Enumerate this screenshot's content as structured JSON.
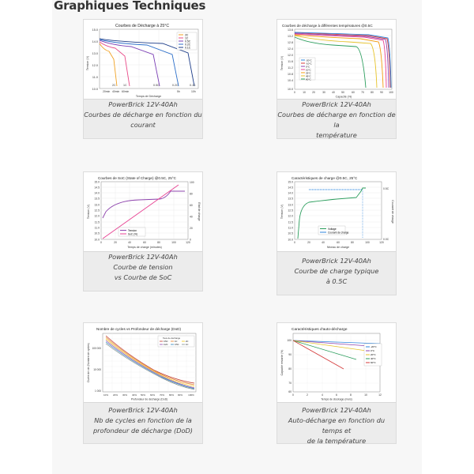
{
  "heading": "Graphiques Techniques",
  "cards": [
    {
      "caption": [
        "PowerBrick 12V-40Ah",
        "Courbes de décharge en fonction du",
        "courant"
      ],
      "chart": {
        "title": "Courbes de Décharge à 25°C",
        "ylabel": "Tension (V)",
        "xlabel": "Temps de Décharge",
        "yticks": [
          "15.0",
          "14.0",
          "13.0",
          "12.0",
          "11.0",
          "10.0"
        ],
        "xticks": [
          "2C",
          "1C",
          "0.5C",
          "0.2C",
          "0.1C"
        ],
        "xticks2": [
          "20min",
          "40min",
          "60min",
          "5h",
          "10h"
        ],
        "series": [
          "2C",
          "1C",
          "0.5C",
          "0.2C",
          "0.1C"
        ]
      }
    },
    {
      "caption": [
        "PowerBrick 12V-40Ah",
        "Courbes de décharge en fonction de la",
        "température"
      ],
      "chart": {
        "title": "Courbes de décharge à différentes températures @0.5C",
        "ylabel": "Tension (V)",
        "xlabel": "Capacité (%)",
        "yticks": [
          "13.6",
          "13.2",
          "12.8",
          "12.4",
          "12.0",
          "11.6",
          "11.2",
          "10.8",
          "10.4",
          "10.0"
        ],
        "xticks": [
          "0",
          "10",
          "20",
          "30",
          "40",
          "50",
          "60",
          "70",
          "80",
          "90",
          "100"
        ],
        "series": [
          "-20°C",
          "-10°C",
          "0°C",
          "10°C",
          "25°C",
          "45°C",
          "60°C"
        ]
      }
    },
    {
      "caption": [
        "PowerBrick 12V-40Ah",
        "Courbe de tension",
        "vs Courbe de SoC"
      ],
      "chart": {
        "title": "Courbes de SoC (State of Charge) @0.5C, 25°C",
        "ylabel": "Tension (V)",
        "y2label": "Etat de charge",
        "xlabel": "Temps de charge (minutes)",
        "yticks": [
          "15.0",
          "14.5",
          "14.0",
          "13.5",
          "13.0",
          "12.5",
          "12.0",
          "11.5",
          "11.0",
          "10.5",
          "10.0"
        ],
        "y2ticks": [
          "100",
          "80",
          "60",
          "40",
          "20",
          "0"
        ],
        "xticks": [
          "0",
          "20",
          "40",
          "60",
          "80",
          "100",
          "120"
        ],
        "series": [
          "Tension",
          "SoC (%)"
        ]
      }
    },
    {
      "caption": [
        "PowerBrick 12V-40Ah",
        "Courbe de charge typique",
        "à 0.5C"
      ],
      "chart": {
        "title": "Caractéristiques de charge @0.5C, 25°C",
        "ylabel": "Tension (V)",
        "y2label": "Courant de charge",
        "xlabel": "Niveau de charge",
        "yticks": [
          "15.0",
          "14.5",
          "14.0",
          "13.5",
          "13.0",
          "12.5",
          "12.0",
          "11.5",
          "11.0",
          "10.5",
          "10.0"
        ],
        "y2ticks": [
          "0.5C",
          "0.0C"
        ],
        "xticks": [
          "0",
          "20",
          "40",
          "60",
          "80",
          "100",
          "120"
        ],
        "series": [
          "Voltage",
          "Courant de charge"
        ]
      }
    },
    {
      "caption": [
        "PowerBrick 12V-40Ah",
        "Nb de cycles en fonction de la",
        "profondeur de décharge (DoD)"
      ],
      "chart": {
        "title": "Nombre de cycles vs Profondeur de décharge (DoD)",
        "ylabel": "Durée de vie (Nombre de cycles)",
        "xlabel": "Profondeur de décharge (DoD)",
        "yticks": [
          "100 000",
          "10 000",
          "1 000"
        ],
        "xticks": [
          "10%",
          "20%",
          "30%",
          "40%",
          "50%",
          "60%",
          "70%",
          "80%",
          "90%",
          "100%"
        ],
        "legend_title": "Taux de décharge",
        "series": [
          "0.5C",
          "1C",
          "2C",
          "0.2C",
          "0.5C",
          "1C"
        ]
      }
    },
    {
      "caption": [
        "PowerBrick 12V-40Ah",
        "Auto-décharge en fonction du temps et",
        "de la température"
      ],
      "chart": {
        "title": "Caractéristiques d'auto-décharge",
        "ylabel": "Capacité restante (%)",
        "xlabel": "Temps de stockage (mois)",
        "yticks": [
          "100",
          "90",
          "80",
          "70",
          "60"
        ],
        "xticks": [
          "0",
          "2",
          "4",
          "6",
          "8",
          "10",
          "12"
        ],
        "series": [
          "-20°C",
          "0°C",
          "20°C",
          "40°C",
          "60°C"
        ]
      }
    }
  ],
  "colors": {
    "s2c": "#f0a020",
    "s1c": "#e94c8a",
    "s05c": "#7b3fb5",
    "s02c": "#2d6fc9",
    "s01c": "#1f3f8a",
    "green": "#2a9d5c",
    "red": "#d43a3a",
    "orange": "#f39c12",
    "purple": "#8e44ad",
    "blue": "#2e86de",
    "pink": "#e84393",
    "yellow": "#e6c229"
  }
}
